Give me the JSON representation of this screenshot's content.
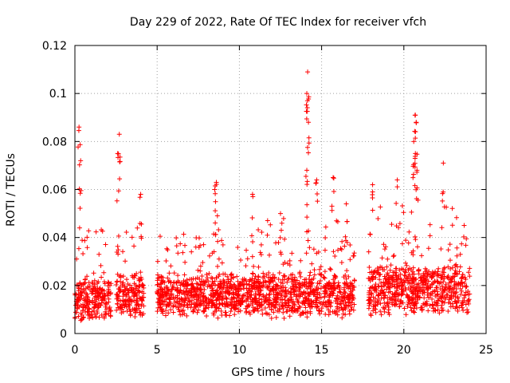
{
  "chart_data": {
    "type": "scatter",
    "title": "Day 229 of 2022, Rate Of TEC Index for receiver vfch",
    "xlabel": "GPS time / hours",
    "ylabel": "ROTI / TECUs",
    "xlim": [
      0,
      25
    ],
    "ylim": [
      0,
      0.12
    ],
    "xticks": [
      0,
      5,
      10,
      15,
      20,
      25
    ],
    "yticks": [
      0,
      0.02,
      0.04,
      0.06,
      0.08,
      0.1,
      0.12
    ],
    "xtick_labels": [
      "0",
      "5",
      "10",
      "15",
      "20",
      "25"
    ],
    "ytick_labels": [
      "0",
      "0.02",
      "0.04",
      "0.06",
      "0.08",
      "0.1",
      "0.12"
    ],
    "grid": true,
    "marker": "+",
    "color": "#ff0000",
    "data_gaps_hours": [
      [
        2.2,
        2.5
      ],
      [
        4.2,
        5.0
      ],
      [
        17.0,
        17.8
      ]
    ],
    "peaks": [
      {
        "x": 0.25,
        "y": 0.086
      },
      {
        "x": 0.35,
        "y": 0.072
      },
      {
        "x": 2.7,
        "y": 0.083
      },
      {
        "x": 2.6,
        "y": 0.075
      },
      {
        "x": 4.0,
        "y": 0.058
      },
      {
        "x": 8.6,
        "y": 0.063
      },
      {
        "x": 10.8,
        "y": 0.058
      },
      {
        "x": 14.15,
        "y": 0.109
      },
      {
        "x": 14.1,
        "y": 0.1
      },
      {
        "x": 14.2,
        "y": 0.088
      },
      {
        "x": 14.1,
        "y": 0.068
      },
      {
        "x": 14.7,
        "y": 0.064
      },
      {
        "x": 15.7,
        "y": 0.065
      },
      {
        "x": 20.7,
        "y": 0.091
      },
      {
        "x": 20.75,
        "y": 0.088
      },
      {
        "x": 20.6,
        "y": 0.08
      },
      {
        "x": 20.7,
        "y": 0.075
      },
      {
        "x": 20.8,
        "y": 0.068
      },
      {
        "x": 22.4,
        "y": 0.071
      },
      {
        "x": 19.6,
        "y": 0.064
      },
      {
        "x": 18.1,
        "y": 0.062
      },
      {
        "x": 8.5,
        "y": 0.06
      },
      {
        "x": 12.5,
        "y": 0.05
      },
      {
        "x": 16.5,
        "y": 0.054
      }
    ],
    "background_band": {
      "ymin": 0.005,
      "ymax": 0.035
    },
    "segments": [
      {
        "x0": 0.0,
        "x1": 2.2,
        "base": 0.014,
        "spread": 0.012
      },
      {
        "x0": 2.5,
        "x1": 4.2,
        "base": 0.016,
        "spread": 0.014
      },
      {
        "x0": 5.0,
        "x1": 17.0,
        "base": 0.016,
        "spread": 0.014
      },
      {
        "x0": 17.8,
        "x1": 24.0,
        "base": 0.018,
        "spread": 0.016
      }
    ]
  }
}
